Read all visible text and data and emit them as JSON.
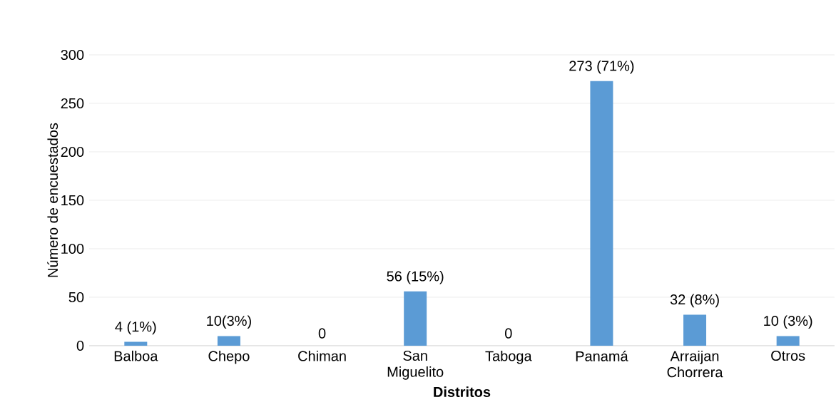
{
  "chart_data": {
    "type": "bar",
    "xlabel": "Distritos",
    "ylabel": "Número de encuestados",
    "categories": [
      "Balboa",
      "Chepo",
      "Chiman",
      "San Miguelito",
      "Taboga",
      "Panamá",
      "Arraijan Chorrera",
      "Otros"
    ],
    "values": [
      4,
      10,
      0,
      56,
      0,
      273,
      32,
      10
    ],
    "value_labels": [
      "4 (1%)",
      "10(3%)",
      "0",
      "56 (15%)",
      "0",
      "273 (71%)",
      "32 (8%)",
      "10 (3%)"
    ],
    "color": "#5b9bd5",
    "ylim": [
      0,
      300
    ],
    "yticks": [
      0,
      50,
      100,
      150,
      200,
      250,
      300
    ],
    "grid": "y"
  }
}
